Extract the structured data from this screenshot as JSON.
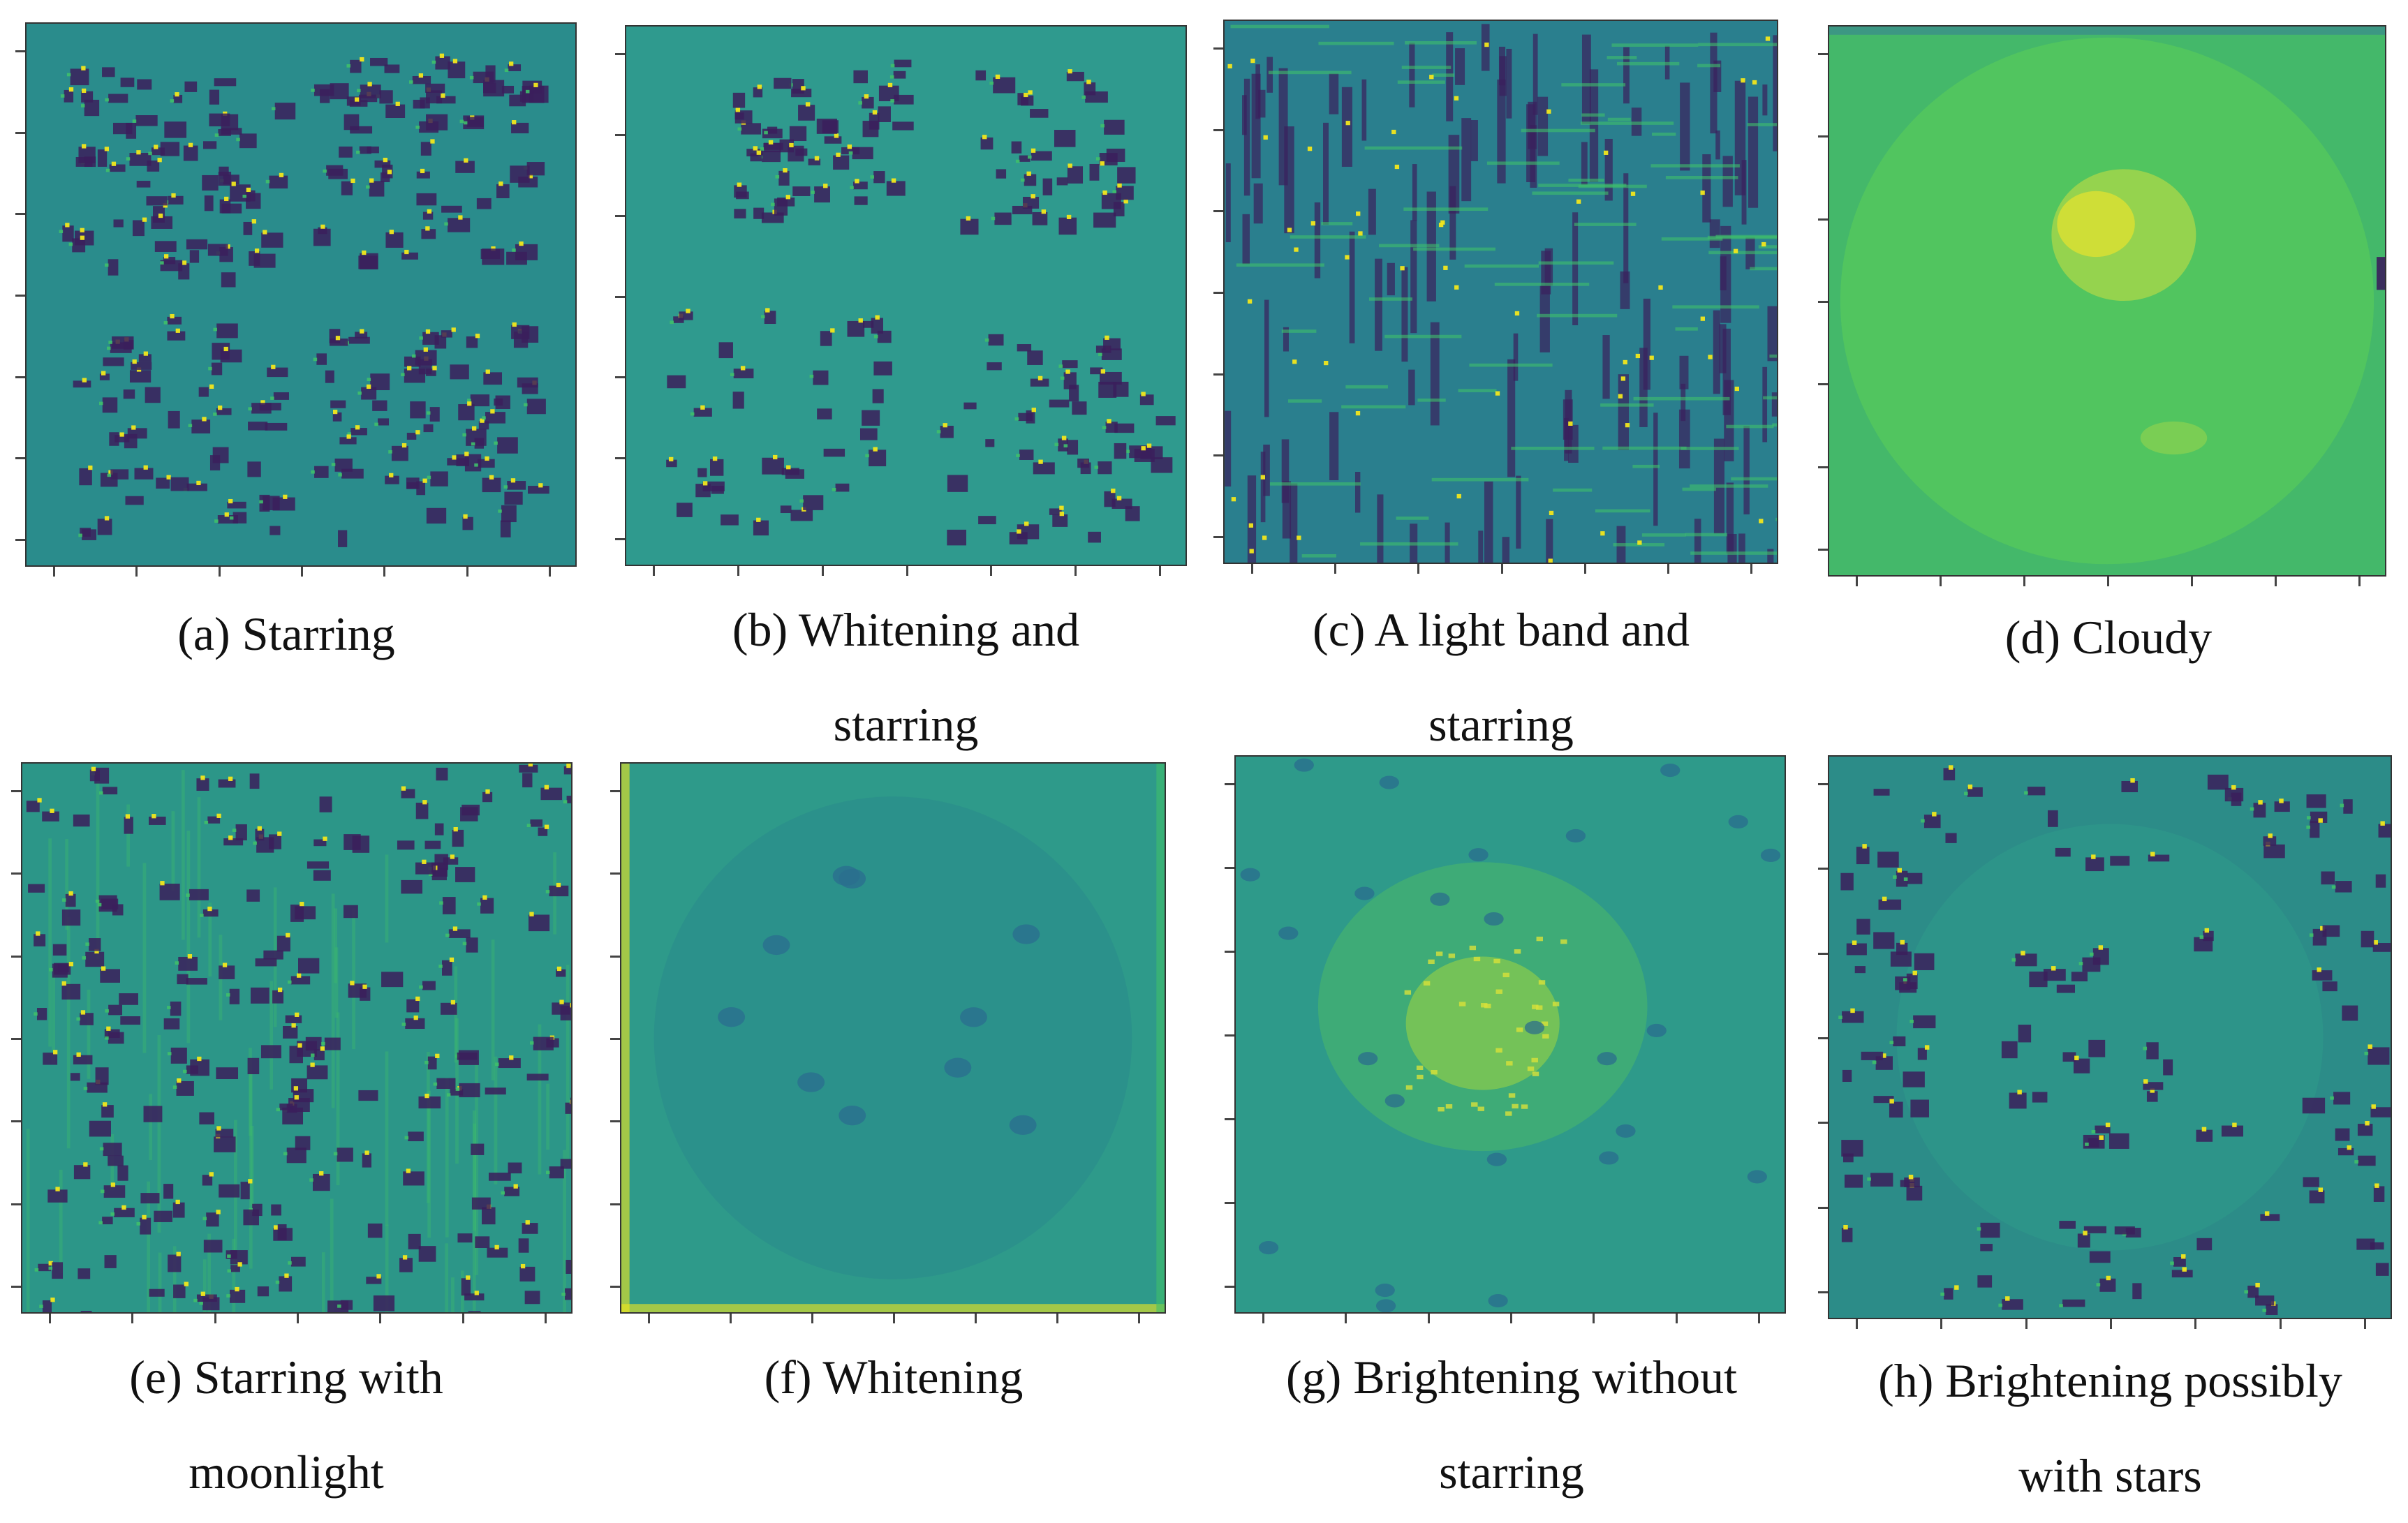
{
  "panels": [
    {
      "id": "a",
      "caption_line1": "(a) Starring",
      "caption_line2": "",
      "palette": "starring"
    },
    {
      "id": "b",
      "caption_line1": "(b) Whitening and",
      "caption_line2": "starring",
      "palette": "whiten-star"
    },
    {
      "id": "c",
      "caption_line1": "(c) A light band and",
      "caption_line2": "starring",
      "palette": "band"
    },
    {
      "id": "d",
      "caption_line1": "(d) Cloudy",
      "caption_line2": "",
      "palette": "cloudy"
    },
    {
      "id": "e",
      "caption_line1": "(e) Starring with",
      "caption_line2": "moonlight",
      "palette": "moon"
    },
    {
      "id": "f",
      "caption_line1": "(f) Whitening",
      "caption_line2": "",
      "palette": "whiten"
    },
    {
      "id": "g",
      "caption_line1": "(g) Brightening without",
      "caption_line2": "starring",
      "palette": "bright"
    },
    {
      "id": "h",
      "caption_line1": "(h) Brightening possibly",
      "caption_line2": "with stars",
      "palette": "bright-stars"
    }
  ],
  "colors": {
    "base_teal": "#2a8c8c",
    "dark_purple": "#3b1f5c",
    "yellow": "#f2e71c",
    "green": "#3fbf6a",
    "bright_green": "#5ccf55"
  }
}
